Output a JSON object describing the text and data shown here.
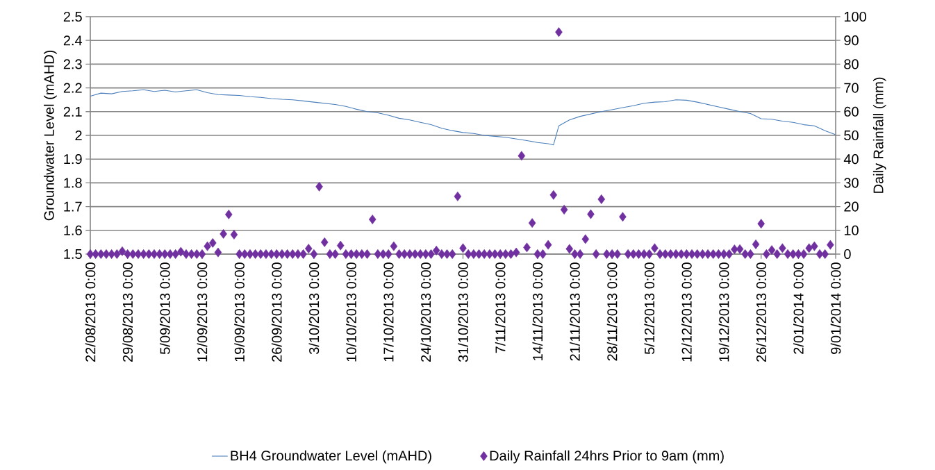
{
  "chart_data": {
    "type": "line",
    "ylabel": "Groundwater Level (mAHD)",
    "y2label": "Daily Rainfall (mm)",
    "xlim": [
      "2013-08-22",
      "2014-01-09"
    ],
    "xticks": [
      {
        "value": "2013-08-22",
        "label": "22/08/2013 0:00"
      },
      {
        "value": "2013-08-29",
        "label": "29/08/2013 0:00"
      },
      {
        "value": "2013-09-05",
        "label": "5/09/2013 0:00"
      },
      {
        "value": "2013-09-12",
        "label": "12/09/2013 0:00"
      },
      {
        "value": "2013-09-19",
        "label": "19/09/2013 0:00"
      },
      {
        "value": "2013-09-26",
        "label": "26/09/2013 0:00"
      },
      {
        "value": "2013-10-03",
        "label": "3/10/2013 0:00"
      },
      {
        "value": "2013-10-10",
        "label": "10/10/2013 0:00"
      },
      {
        "value": "2013-10-17",
        "label": "17/10/2013 0:00"
      },
      {
        "value": "2013-10-24",
        "label": "24/10/2013 0:00"
      },
      {
        "value": "2013-10-31",
        "label": "31/10/2013 0:00"
      },
      {
        "value": "2013-11-07",
        "label": "7/11/2013 0:00"
      },
      {
        "value": "2013-11-14",
        "label": "14/11/2013 0:00"
      },
      {
        "value": "2013-11-21",
        "label": "21/11/2013 0:00"
      },
      {
        "value": "2013-11-28",
        "label": "28/11/2013 0:00"
      },
      {
        "value": "2013-12-05",
        "label": "5/12/2013 0:00"
      },
      {
        "value": "2013-12-12",
        "label": "12/12/2013 0:00"
      },
      {
        "value": "2013-12-19",
        "label": "19/12/2013 0:00"
      },
      {
        "value": "2013-12-26",
        "label": "26/12/2013 0:00"
      },
      {
        "value": "2014-01-02",
        "label": "2/01/2014 0:00"
      },
      {
        "value": "2014-01-09",
        "label": "9/01/2014 0:00"
      }
    ],
    "ylim": [
      1.5,
      2.5
    ],
    "yticks": [
      1.5,
      1.6,
      1.7,
      1.8,
      1.9,
      2,
      2.1,
      2.2,
      2.3,
      2.4,
      2.5
    ],
    "y2lim": [
      0,
      100
    ],
    "y2ticks": [
      0,
      10,
      20,
      30,
      40,
      50,
      60,
      70,
      80,
      90,
      100
    ],
    "grid": "y",
    "legend": "bottom",
    "series": [
      {
        "name": "BH4 Groundwater Level (mAHD)",
        "color": "#4a7ebb",
        "x": [
          "2013-08-22",
          "2013-08-24",
          "2013-08-26",
          "2013-08-28",
          "2013-08-30",
          "2013-09-01",
          "2013-09-03",
          "2013-09-05",
          "2013-09-07",
          "2013-09-09",
          "2013-09-11",
          "2013-09-13",
          "2013-09-15",
          "2013-09-17",
          "2013-09-19",
          "2013-09-21",
          "2013-09-23",
          "2013-09-25",
          "2013-09-27",
          "2013-09-29",
          "2013-10-01",
          "2013-10-03",
          "2013-10-05",
          "2013-10-07",
          "2013-10-09",
          "2013-10-11",
          "2013-10-13",
          "2013-10-15",
          "2013-10-17",
          "2013-10-19",
          "2013-10-21",
          "2013-10-23",
          "2013-10-25",
          "2013-10-27",
          "2013-10-29",
          "2013-10-31",
          "2013-11-02",
          "2013-11-04",
          "2013-11-06",
          "2013-11-08",
          "2013-11-10",
          "2013-11-12",
          "2013-11-14",
          "2013-11-16",
          "2013-11-17",
          "2013-11-18",
          "2013-11-20",
          "2013-11-22",
          "2013-11-24",
          "2013-11-26",
          "2013-11-28",
          "2013-11-30",
          "2013-12-02",
          "2013-12-04",
          "2013-12-06",
          "2013-12-08",
          "2013-12-10",
          "2013-12-12",
          "2013-12-14",
          "2013-12-16",
          "2013-12-18",
          "2013-12-20",
          "2013-12-22",
          "2013-12-24",
          "2013-12-26",
          "2013-12-28",
          "2013-12-30",
          "2014-01-01",
          "2014-01-03",
          "2014-01-05",
          "2014-01-07",
          "2014-01-09"
        ],
        "values": [
          2.165,
          2.178,
          2.175,
          2.185,
          2.188,
          2.192,
          2.185,
          2.19,
          2.183,
          2.188,
          2.192,
          2.18,
          2.172,
          2.17,
          2.168,
          2.163,
          2.16,
          2.155,
          2.152,
          2.15,
          2.145,
          2.14,
          2.135,
          2.13,
          2.122,
          2.11,
          2.1,
          2.095,
          2.085,
          2.072,
          2.065,
          2.055,
          2.045,
          2.03,
          2.02,
          2.012,
          2.008,
          2.0,
          1.996,
          1.992,
          1.985,
          1.978,
          1.97,
          1.965,
          1.96,
          2.04,
          2.065,
          2.08,
          2.09,
          2.1,
          2.108,
          2.117,
          2.125,
          2.135,
          2.14,
          2.142,
          2.15,
          2.148,
          2.14,
          2.13,
          2.12,
          2.11,
          2.1,
          2.092,
          2.07,
          2.068,
          2.06,
          2.055,
          2.045,
          2.04,
          2.02,
          2.003
        ]
      },
      {
        "name": "Daily Rainfall 24hrs Prior to 9am (mm)",
        "type": "scatter",
        "axis": "y2",
        "color": "#7030a0",
        "marker": "diamond",
        "x": [
          "2013-08-22",
          "2013-08-23",
          "2013-08-24",
          "2013-08-25",
          "2013-08-26",
          "2013-08-27",
          "2013-08-28",
          "2013-08-29",
          "2013-08-30",
          "2013-08-31",
          "2013-09-01",
          "2013-09-02",
          "2013-09-03",
          "2013-09-04",
          "2013-09-05",
          "2013-09-06",
          "2013-09-07",
          "2013-09-08",
          "2013-09-09",
          "2013-09-10",
          "2013-09-11",
          "2013-09-12",
          "2013-09-13",
          "2013-09-14",
          "2013-09-15",
          "2013-09-16",
          "2013-09-17",
          "2013-09-18",
          "2013-09-19",
          "2013-09-20",
          "2013-09-21",
          "2013-09-22",
          "2013-09-23",
          "2013-09-24",
          "2013-09-25",
          "2013-09-26",
          "2013-09-27",
          "2013-09-28",
          "2013-09-29",
          "2013-09-30",
          "2013-10-01",
          "2013-10-02",
          "2013-10-03",
          "2013-10-04",
          "2013-10-05",
          "2013-10-06",
          "2013-10-07",
          "2013-10-08",
          "2013-10-09",
          "2013-10-10",
          "2013-10-11",
          "2013-10-12",
          "2013-10-13",
          "2013-10-14",
          "2013-10-15",
          "2013-10-16",
          "2013-10-17",
          "2013-10-18",
          "2013-10-19",
          "2013-10-20",
          "2013-10-21",
          "2013-10-22",
          "2013-10-23",
          "2013-10-24",
          "2013-10-25",
          "2013-10-26",
          "2013-10-27",
          "2013-10-28",
          "2013-10-29",
          "2013-10-30",
          "2013-10-31",
          "2013-11-01",
          "2013-11-02",
          "2013-11-03",
          "2013-11-04",
          "2013-11-05",
          "2013-11-06",
          "2013-11-07",
          "2013-11-08",
          "2013-11-09",
          "2013-11-10",
          "2013-11-11",
          "2013-11-12",
          "2013-11-13",
          "2013-11-14",
          "2013-11-15",
          "2013-11-16",
          "2013-11-17",
          "2013-11-18",
          "2013-11-19",
          "2013-11-20",
          "2013-11-21",
          "2013-11-22",
          "2013-11-23",
          "2013-11-24",
          "2013-11-25",
          "2013-11-26",
          "2013-11-27",
          "2013-11-28",
          "2013-11-29",
          "2013-11-30",
          "2013-12-01",
          "2013-12-02",
          "2013-12-03",
          "2013-12-04",
          "2013-12-05",
          "2013-12-06",
          "2013-12-07",
          "2013-12-08",
          "2013-12-09",
          "2013-12-10",
          "2013-12-11",
          "2013-12-12",
          "2013-12-13",
          "2013-12-14",
          "2013-12-15",
          "2013-12-16",
          "2013-12-17",
          "2013-12-18",
          "2013-12-19",
          "2013-12-20",
          "2013-12-21",
          "2013-12-22",
          "2013-12-23",
          "2013-12-24",
          "2013-12-25",
          "2013-12-26",
          "2013-12-27",
          "2013-12-28",
          "2013-12-29",
          "2013-12-30",
          "2013-12-31",
          "2014-01-01",
          "2014-01-02",
          "2014-01-03",
          "2014-01-04",
          "2014-01-05",
          "2014-01-06",
          "2014-01-07",
          "2014-01-08"
        ],
        "values": [
          0,
          0,
          0,
          0,
          0,
          0,
          1.2,
          0,
          0,
          0,
          0,
          0,
          0,
          0,
          0,
          0,
          0,
          1.0,
          0,
          0,
          0,
          0,
          3.3,
          4.7,
          0.7,
          8.5,
          16.7,
          8.2,
          0,
          0,
          0,
          0,
          0,
          0,
          0,
          0,
          0,
          0,
          0,
          0,
          0,
          2.3,
          0,
          28.4,
          5,
          0,
          0,
          3.6,
          0,
          0,
          0,
          0,
          0,
          14.6,
          0,
          0,
          0,
          3.3,
          0,
          0,
          0,
          0,
          0,
          0,
          0,
          1.5,
          0,
          0,
          0,
          24.3,
          2.5,
          0,
          0,
          0,
          0,
          0,
          0,
          0,
          0,
          0,
          0.7,
          41.4,
          2.8,
          13.1,
          0,
          0,
          3.9,
          24.9,
          93.5,
          18.7,
          2.2,
          0,
          0,
          6.3,
          16.8,
          0,
          23.1,
          0,
          0,
          0,
          15.7,
          0,
          0,
          0,
          0,
          0,
          2.5,
          0,
          0,
          0,
          0,
          0,
          0,
          0,
          0,
          0,
          0,
          0,
          0,
          0,
          0,
          2.0,
          2.1,
          0,
          0,
          4.1,
          12.8,
          0,
          1.7,
          0,
          2.5,
          0,
          0,
          0,
          0,
          2.5,
          3.3,
          0,
          0,
          3.9
        ]
      }
    ]
  }
}
